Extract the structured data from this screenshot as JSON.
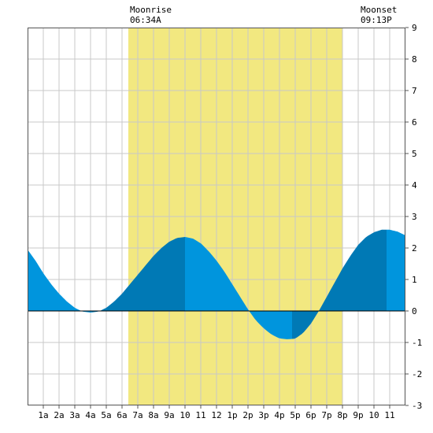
{
  "chart_data": {
    "type": "area",
    "title": "",
    "xlabel": "",
    "ylabel": "",
    "ylim": [
      -3,
      9
    ],
    "yticks": [
      -3,
      -2,
      -1,
      0,
      1,
      2,
      3,
      4,
      5,
      6,
      7,
      8,
      9
    ],
    "xlim": [
      0,
      24
    ],
    "xtick_labels": [
      "1a",
      "2a",
      "3a",
      "4a",
      "5a",
      "6a",
      "7a",
      "8a",
      "9a",
      "10",
      "11",
      "12",
      "1p",
      "2p",
      "3p",
      "4p",
      "5p",
      "6p",
      "7p",
      "8p",
      "9p",
      "10",
      "11"
    ],
    "grid": true,
    "moonrise": {
      "label": "Moonrise",
      "time": "06:34A",
      "hour": 6.57
    },
    "moonset": {
      "label": "Moonset",
      "time": "09:13P",
      "hour": 21.22
    },
    "highlight_band_hours": [
      6.4,
      20.0
    ],
    "extremes": [
      {
        "hour": 4.1,
        "value": -0.05
      },
      {
        "hour": 10.0,
        "value": 2.35
      },
      {
        "hour": 16.8,
        "value": -0.9
      },
      {
        "hour": 22.8,
        "value": 2.6
      }
    ],
    "series": [
      {
        "values": [
          {
            "x": 0,
            "y": 1.95
          },
          {
            "x": 0.5,
            "y": 1.6
          },
          {
            "x": 1,
            "y": 1.2
          },
          {
            "x": 1.5,
            "y": 0.85
          },
          {
            "x": 2,
            "y": 0.55
          },
          {
            "x": 2.5,
            "y": 0.3
          },
          {
            "x": 3,
            "y": 0.1
          },
          {
            "x": 3.5,
            "y": -0.02
          },
          {
            "x": 4,
            "y": -0.05
          },
          {
            "x": 4.5,
            "y": -0.02
          },
          {
            "x": 5,
            "y": 0.1
          },
          {
            "x": 5.5,
            "y": 0.3
          },
          {
            "x": 6,
            "y": 0.55
          },
          {
            "x": 6.5,
            "y": 0.85
          },
          {
            "x": 7,
            "y": 1.15
          },
          {
            "x": 7.5,
            "y": 1.45
          },
          {
            "x": 8,
            "y": 1.75
          },
          {
            "x": 8.5,
            "y": 2.0
          },
          {
            "x": 9,
            "y": 2.2
          },
          {
            "x": 9.5,
            "y": 2.32
          },
          {
            "x": 10,
            "y": 2.35
          },
          {
            "x": 10.5,
            "y": 2.3
          },
          {
            "x": 11,
            "y": 2.15
          },
          {
            "x": 11.5,
            "y": 1.9
          },
          {
            "x": 12,
            "y": 1.6
          },
          {
            "x": 12.5,
            "y": 1.25
          },
          {
            "x": 13,
            "y": 0.85
          },
          {
            "x": 13.5,
            "y": 0.45
          },
          {
            "x": 14,
            "y": 0.05
          },
          {
            "x": 14.5,
            "y": -0.3
          },
          {
            "x": 15,
            "y": -0.55
          },
          {
            "x": 15.5,
            "y": -0.75
          },
          {
            "x": 16,
            "y": -0.87
          },
          {
            "x": 16.5,
            "y": -0.9
          },
          {
            "x": 17,
            "y": -0.88
          },
          {
            "x": 17.5,
            "y": -0.7
          },
          {
            "x": 18,
            "y": -0.4
          },
          {
            "x": 18.5,
            "y": 0.0
          },
          {
            "x": 19,
            "y": 0.45
          },
          {
            "x": 19.5,
            "y": 0.9
          },
          {
            "x": 20,
            "y": 1.35
          },
          {
            "x": 20.5,
            "y": 1.75
          },
          {
            "x": 21,
            "y": 2.1
          },
          {
            "x": 21.5,
            "y": 2.35
          },
          {
            "x": 22,
            "y": 2.5
          },
          {
            "x": 22.5,
            "y": 2.58
          },
          {
            "x": 23,
            "y": 2.58
          },
          {
            "x": 23.5,
            "y": 2.52
          },
          {
            "x": 24,
            "y": 2.4
          }
        ]
      }
    ],
    "colors": {
      "tide_light": "#0095dd",
      "tide_dark": "#0079b5",
      "band": "#f2e880",
      "grid": "#c8c8c8",
      "axis": "#000000"
    }
  }
}
